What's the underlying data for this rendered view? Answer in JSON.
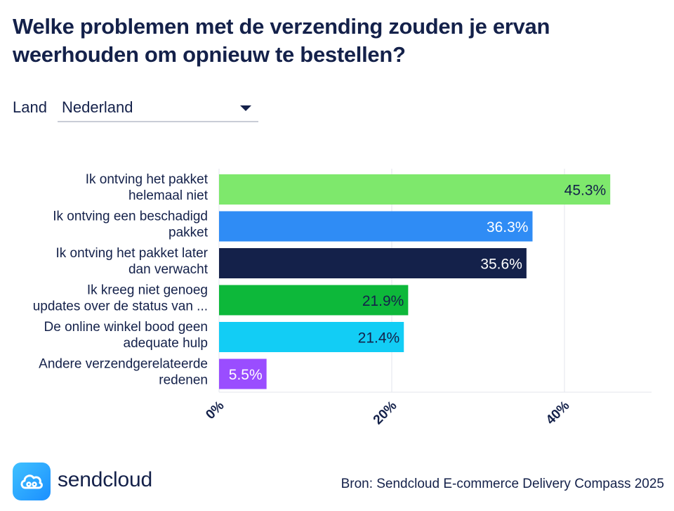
{
  "title": "Welke problemen met de verzending zouden je ervan weerhouden om opnieuw te bestellen?",
  "filter": {
    "label": "Land",
    "selected": "Nederland"
  },
  "chart_data": {
    "type": "bar",
    "orientation": "horizontal",
    "categories": [
      [
        "Ik ontving het pakket",
        "helemaal niet"
      ],
      [
        "Ik ontving een beschadigd",
        "pakket"
      ],
      [
        "Ik ontving het pakket later",
        "dan verwacht"
      ],
      [
        "Ik kreeg niet genoeg",
        "updates over de status van ..."
      ],
      [
        "De online winkel bood geen",
        "adequate hulp"
      ],
      [
        "Andere verzendgerelateerde",
        "redenen"
      ]
    ],
    "values": [
      45.3,
      36.3,
      35.6,
      21.9,
      21.4,
      5.5
    ],
    "value_labels": [
      "45.3%",
      "36.3%",
      "35.6%",
      "21.9%",
      "21.4%",
      "5.5%"
    ],
    "colors": [
      "#7ee86c",
      "#2f8cf5",
      "#14214a",
      "#0db83a",
      "#12cdf5",
      "#9a4dff"
    ],
    "label_colors": [
      "#14214a",
      "#ffffff",
      "#ffffff",
      "#14214a",
      "#14214a",
      "#ffffff"
    ],
    "xlim": [
      0,
      50
    ],
    "xticks": [
      0,
      20,
      40
    ],
    "xtick_labels": [
      "0%",
      "20%",
      "40%"
    ],
    "grid": true
  },
  "brand": {
    "name": "sendcloud",
    "icon": "cloud-icon"
  },
  "source": "Bron: Sendcloud E-commerce Delivery Compass 2025"
}
